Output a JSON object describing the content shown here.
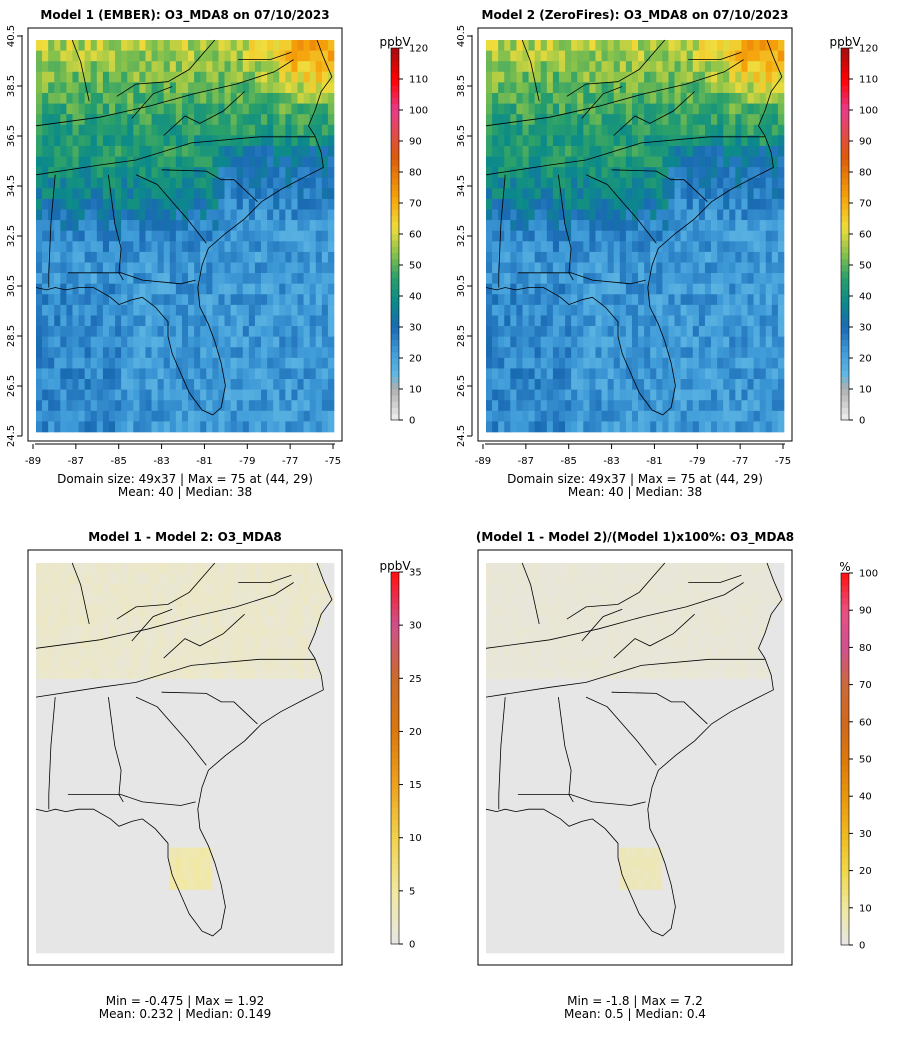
{
  "chart_data": [
    {
      "type": "heatmap",
      "title": "Model 1 (EMBER): O3_MDA8 on 07/10/2023",
      "legend_unit": "ppbV",
      "legend_ticks": [
        0,
        10,
        20,
        30,
        40,
        50,
        60,
        70,
        80,
        90,
        100,
        110,
        120
      ],
      "x_ticks": [
        "-89",
        "-87",
        "-85",
        "-83",
        "-81",
        "-79",
        "-77",
        "-75"
      ],
      "y_ticks": [
        "24.5",
        "26.5",
        "28.5",
        "30.5",
        "32.5",
        "34.5",
        "36.5",
        "38.5",
        "40.5"
      ],
      "xlim": [
        -89,
        -75
      ],
      "ylim": [
        24.5,
        40.5
      ],
      "stats_line1": "Domain size: 49x37 | Max = 75 at (44, 29)",
      "stats_line2": "Mean: 40 |  Median: 38",
      "field": "ozone"
    },
    {
      "type": "heatmap",
      "title": "Model 2 (ZeroFires): O3_MDA8 on 07/10/2023",
      "legend_unit": "ppbV",
      "legend_ticks": [
        0,
        10,
        20,
        30,
        40,
        50,
        60,
        70,
        80,
        90,
        100,
        110,
        120
      ],
      "x_ticks": [
        "-89",
        "-87",
        "-85",
        "-83",
        "-81",
        "-79",
        "-77",
        "-75"
      ],
      "y_ticks": [
        "24.5",
        "26.5",
        "28.5",
        "30.5",
        "32.5",
        "34.5",
        "36.5",
        "38.5",
        "40.5"
      ],
      "xlim": [
        -89,
        -75
      ],
      "ylim": [
        24.5,
        40.5
      ],
      "stats_line1": "Domain size: 49x37 | Max = 75 at (44, 29)",
      "stats_line2": "Mean: 40 |  Median: 38",
      "field": "ozone"
    },
    {
      "type": "heatmap",
      "title": "Model 1 - Model 2: O3_MDA8",
      "legend_unit": "ppbV",
      "legend_ticks": [
        0,
        5,
        10,
        15,
        20,
        25,
        30,
        35
      ],
      "stats_line1": "Min = -0.475 | Max = 1.92",
      "stats_line2": "Mean: 0.232 |  Median: 0.149",
      "field": "diff"
    },
    {
      "type": "heatmap",
      "title": "(Model 1 - Model 2)/(Model 1)x100%: O3_MDA8",
      "legend_unit": "%",
      "legend_ticks": [
        0,
        10,
        20,
        30,
        40,
        50,
        60,
        70,
        80,
        90,
        100
      ],
      "stats_line1": "Min = -1.8 | Max = 7.2",
      "stats_line2": "Mean: 0.5 |  Median: 0.4",
      "field": "pct"
    }
  ]
}
